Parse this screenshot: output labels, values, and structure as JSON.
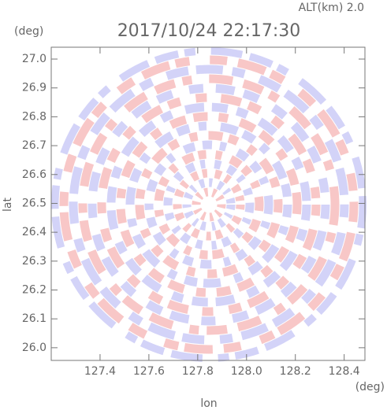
{
  "chart_data": {
    "type": "ppi",
    "title": "2017/10/24 22:17:30",
    "subtitle": "ALT(km) 2.0",
    "x_label": "lon",
    "x_unit": "(deg)",
    "y_label": "lat",
    "y_unit": "(deg)",
    "xlim": [
      127.2,
      128.485
    ],
    "ylim": [
      25.956,
      27.041
    ],
    "xticks": [
      127.4,
      127.6,
      127.8,
      {
        "value": 128.0,
        "label": "128.0"
      },
      128.2,
      128.4
    ],
    "yticks": [
      {
        "value": 26.0,
        "label": "26.0"
      },
      26.1,
      26.2,
      26.3,
      26.4,
      26.5,
      26.6,
      26.7,
      26.8,
      26.9,
      {
        "value": 27.0,
        "label": "27.0"
      }
    ]
  }
}
